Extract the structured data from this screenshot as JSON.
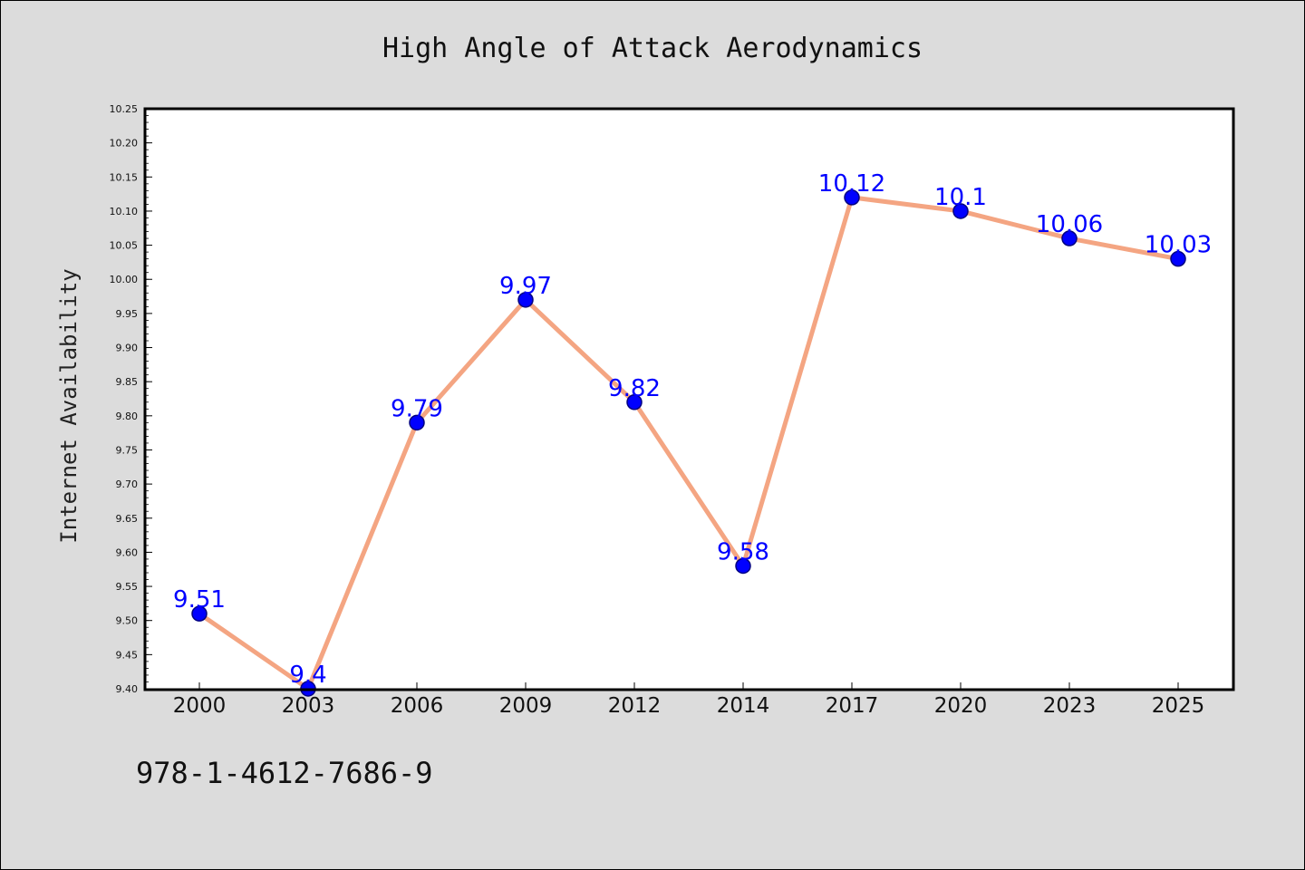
{
  "chart_data": {
    "type": "line",
    "title": "High Angle of Attack Aerodynamics",
    "xlabel": "",
    "ylabel": "Internet Availability",
    "categories": [
      "2000",
      "2003",
      "2006",
      "2009",
      "2012",
      "2014",
      "2017",
      "2020",
      "2023",
      "2025"
    ],
    "series": [
      {
        "values": [
          9.51,
          9.4,
          9.79,
          9.97,
          9.82,
          9.58,
          10.12,
          10.1,
          10.06,
          10.03
        ],
        "data_labels": [
          "9.51",
          "9.4",
          "9.79",
          "9.97",
          "9.82",
          "9.58",
          "10.12",
          "10.1",
          "10.06",
          "10.03"
        ]
      }
    ],
    "ylim": [
      9.4,
      10.25
    ],
    "yticks": [
      "9.40",
      "9.45",
      "9.50",
      "9.55",
      "9.60",
      "9.65",
      "9.70",
      "9.75",
      "9.80",
      "9.85",
      "9.90",
      "9.95",
      "10.00",
      "10.05",
      "10.10",
      "10.15",
      "10.20",
      "10.25"
    ],
    "grid": false,
    "legend": "none",
    "colors": {
      "line": "#f4a582",
      "marker": "#0000ff",
      "marker_edge": "#000080",
      "data_label": "#0000ff",
      "plot_background": "#ffffff",
      "figure_background": "#dcdcdc"
    }
  },
  "footer": {
    "isbn": "978-1-4612-7686-9"
  }
}
